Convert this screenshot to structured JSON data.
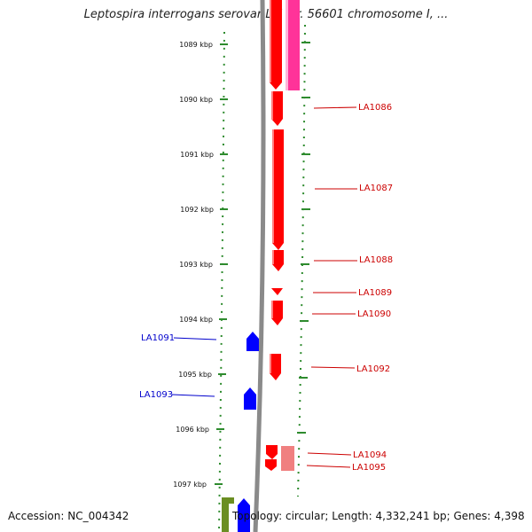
{
  "title": "Leptospira interrogans serovar Lai str. 56601 chromosome I, ...",
  "footer": {
    "accession": "Accession: NC_004342",
    "topology": "Topology: circular; Length: 4,332,241 bp; Genes: 4,398"
  },
  "colors": {
    "forward_gene": "#ff0000",
    "reverse_gene": "#0000ff",
    "pink_feature": "#ff3399",
    "light_red_feature": "#f08080",
    "olive_feature": "#6b8e23",
    "backbone": "#8a8a8a",
    "scale_dots": "#2e8b2e"
  },
  "scale_labels": [
    "1089 kbp",
    "1090 kbp",
    "1091 kbp",
    "1092 kbp",
    "1093 kbp",
    "1094 kbp",
    "1095 kbp",
    "1096 kbp",
    "1097 kbp"
  ],
  "gene_labels": [
    {
      "name": "LA1086",
      "strand": "forward"
    },
    {
      "name": "LA1087",
      "strand": "forward"
    },
    {
      "name": "LA1088",
      "strand": "forward"
    },
    {
      "name": "LA1089",
      "strand": "forward"
    },
    {
      "name": "LA1090",
      "strand": "forward"
    },
    {
      "name": "LA1091",
      "strand": "reverse"
    },
    {
      "name": "LA1092",
      "strand": "forward"
    },
    {
      "name": "LA1093",
      "strand": "reverse"
    },
    {
      "name": "LA1094",
      "strand": "forward"
    },
    {
      "name": "LA1095",
      "strand": "forward"
    }
  ]
}
